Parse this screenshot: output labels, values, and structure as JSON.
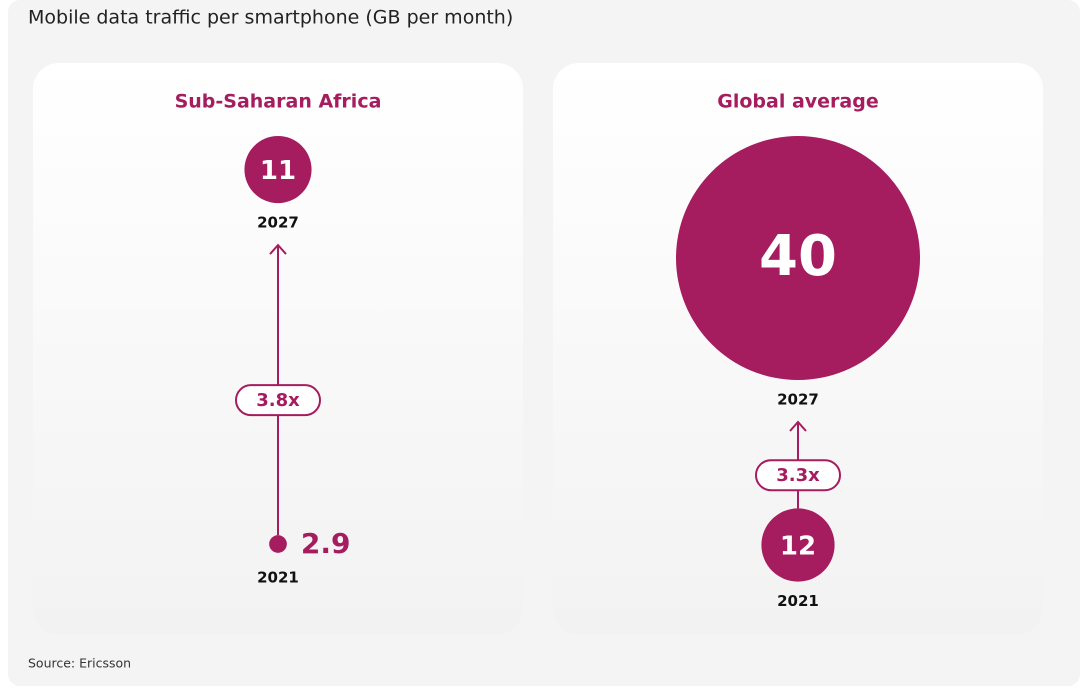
{
  "title": "Mobile data traffic per smartphone (GB per month)",
  "color": "#a51c5f",
  "panels": [
    {
      "title": "Sub-Saharan Africa",
      "growth": "3.8x",
      "start": {
        "year": "2021",
        "value": 2.9
      },
      "end": {
        "year": "2027",
        "value": 11
      }
    },
    {
      "title": "Global average",
      "growth": "3.3x",
      "start": {
        "year": "2021",
        "value": 12
      },
      "end": {
        "year": "2027",
        "value": 40
      }
    }
  ],
  "source": "Source: Ericsson"
}
